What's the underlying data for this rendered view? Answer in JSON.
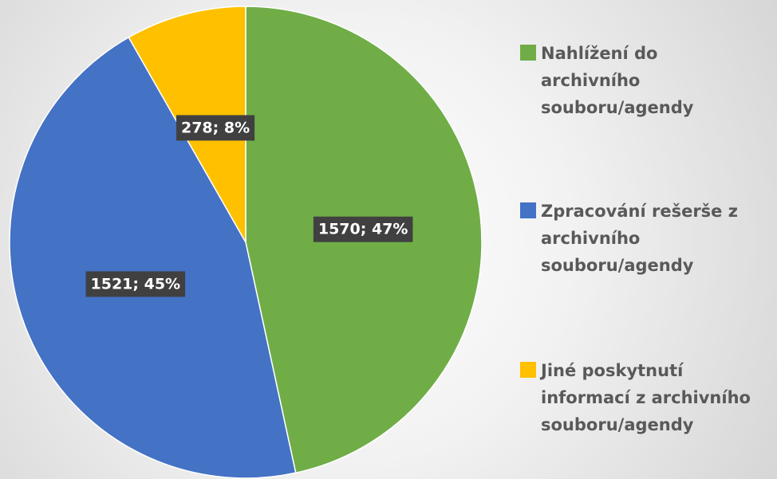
{
  "chart_data": {
    "type": "pie",
    "categories": [
      "Nahlížení do archivního souboru/agendy",
      "Zpracování rešerše z archivního souboru/agendy",
      "Jiné poskytnutí informací z archivního souboru/agendy"
    ],
    "values": [
      1570,
      1521,
      278
    ],
    "value_labels": [
      "1570; 47%",
      "1521; 45%",
      "278; 8%"
    ],
    "colors": [
      "#70ad47",
      "#4472c4",
      "#ffc000"
    ],
    "legend": "right"
  }
}
